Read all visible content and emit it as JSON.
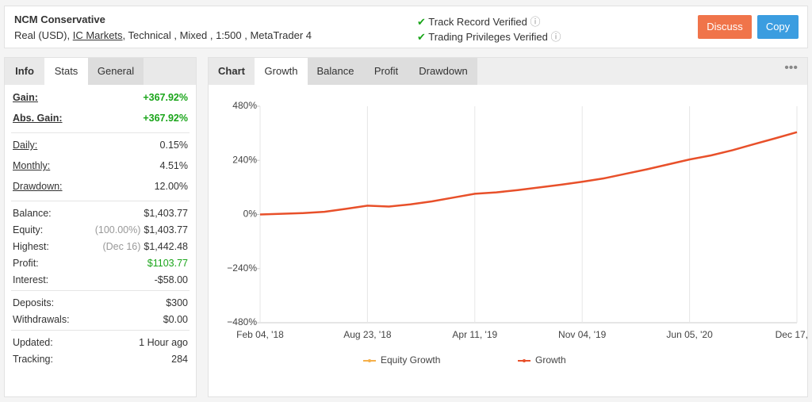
{
  "header": {
    "title": "NCM Conservative",
    "subtitle": [
      "Real (USD),",
      "IC Markets",
      ", Technical , Mixed , 1:500 , MetaTrader 4"
    ],
    "verified": [
      "Track Record Verified",
      "Trading Privileges Verified"
    ],
    "buttons": [
      "Discuss",
      "Copy"
    ]
  },
  "left_tabs": [
    "Info",
    "Stats",
    "General"
  ],
  "stats": [
    [
      {
        "label": "Gain:",
        "value": "+367.92%",
        "color": "#1aa51a"
      },
      {
        "label": "Abs. Gain:",
        "value": "+367.92%",
        "color": "#1aa51a"
      }
    ],
    [
      {
        "label": "Daily:",
        "value": "0.15%"
      },
      {
        "label": "Monthly:",
        "value": "4.51%"
      },
      {
        "label": "Drawdown:",
        "value": "12.00%"
      }
    ],
    [
      {
        "label": "Balance:",
        "value": "$1,403.77"
      },
      {
        "label": "Equity:",
        "note": "(100.00%)",
        "value": "$1,403.77"
      },
      {
        "label": "Highest:",
        "note": "(Dec 16)",
        "value": "$1,442.48"
      },
      {
        "label": "Profit:",
        "value": "$1103.77",
        "color": "#1aa51a"
      },
      {
        "label": "Interest:",
        "value": "-$58.00"
      }
    ],
    [
      {
        "label": "Deposits:",
        "value": "$300"
      },
      {
        "label": "Withdrawals:",
        "value": "$0.00"
      }
    ],
    [
      {
        "label": "Updated:",
        "value": "1 Hour ago"
      },
      {
        "label": "Tracking:",
        "value": "284"
      }
    ]
  ],
  "chart_tabs": [
    "Chart",
    "Growth",
    "Balance",
    "Profit",
    "Drawdown"
  ],
  "chart_data": {
    "type": "line",
    "categories": [
      "Feb 04, '18",
      null,
      null,
      null,
      null,
      "Aug 23, '18",
      null,
      null,
      null,
      null,
      "Apr 11, '19",
      null,
      null,
      null,
      null,
      "Nov 04, '19",
      null,
      null,
      null,
      null,
      "Jun 05, '20",
      null,
      null,
      null,
      null,
      "Dec 17, ..."
    ],
    "series": [
      {
        "name": "Equity Growth",
        "color": "#f5b04a",
        "values": [
          0,
          3,
          6,
          12,
          25,
          39,
          35,
          45,
          58,
          75,
          92,
          98,
          108,
          120,
          132,
          145,
          160,
          180,
          200,
          222,
          244,
          262,
          285,
          312,
          338,
          365
        ]
      },
      {
        "name": "Growth",
        "color": "#e8502a",
        "values": [
          0,
          3,
          6,
          12,
          25,
          39,
          35,
          45,
          58,
          75,
          92,
          98,
          108,
          120,
          132,
          145,
          160,
          180,
          200,
          222,
          244,
          262,
          285,
          312,
          338,
          365
        ]
      }
    ],
    "ylim": [
      -480,
      480
    ],
    "yticks": [
      {
        "value": -480,
        "label": "−480%"
      },
      {
        "value": -240,
        "label": "−240%"
      },
      {
        "value": 0,
        "label": "0%"
      },
      {
        "value": 240,
        "label": "240%"
      },
      {
        "value": 480,
        "label": "480%"
      }
    ],
    "grid": true
  }
}
